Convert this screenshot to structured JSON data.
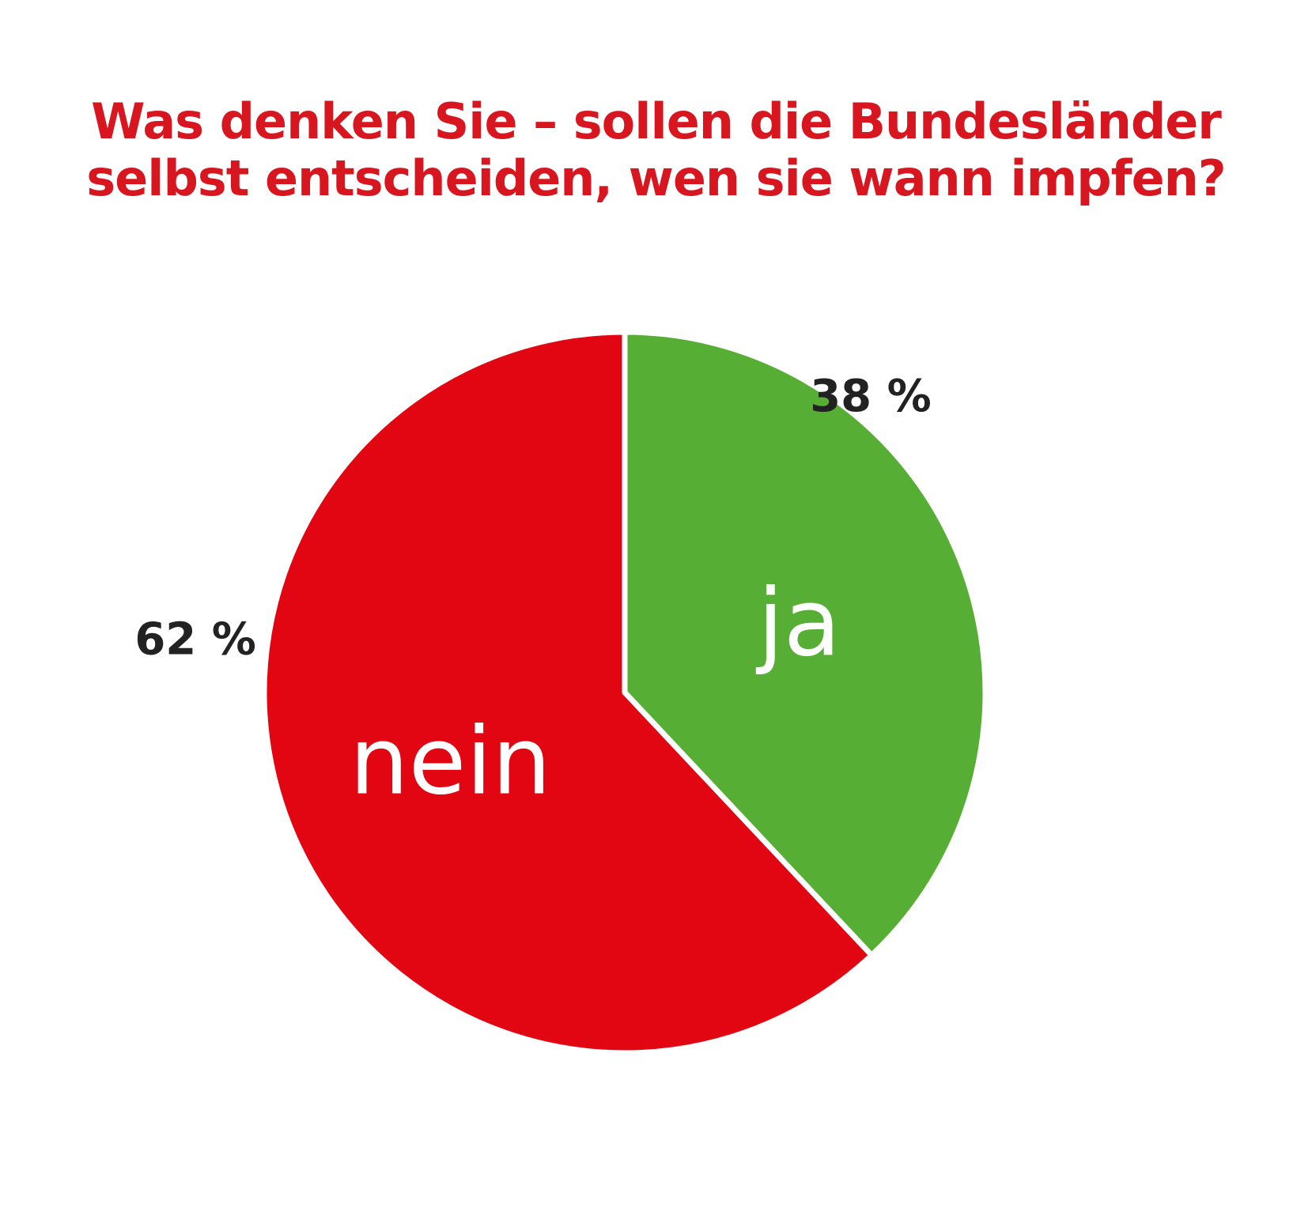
{
  "chart_data": {
    "type": "pie",
    "title_lines": [
      "Was denken Sie – sollen die Bundesländer",
      "selbst entscheiden, wen sie wann impfen?"
    ],
    "slices": [
      {
        "name": "ja",
        "value": 38,
        "value_label": "38 %",
        "color": "#57ae34"
      },
      {
        "name": "nein",
        "value": 62,
        "value_label": "62 %",
        "color": "#e20613"
      }
    ],
    "start": "12 o'clock",
    "direction": "clockwise",
    "separator_color": "#ffffff",
    "legend": "none"
  }
}
